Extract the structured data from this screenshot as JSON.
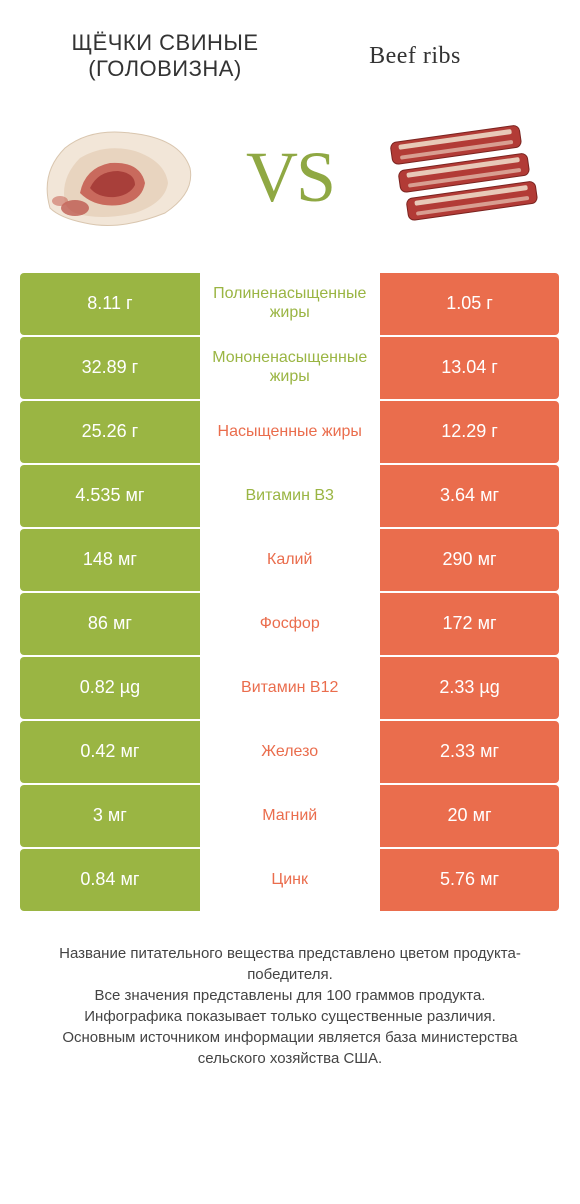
{
  "colors": {
    "green": "#9ab543",
    "orange": "#ea6d4d",
    "bg": "#ffffff",
    "text": "#333333"
  },
  "header": {
    "left_title": "ЩЁЧКИ СВИНЫЕ (ГОЛОВИЗНА)",
    "right_title": "Beef ribs",
    "vs": "VS"
  },
  "rows": [
    {
      "left": "8.11 г",
      "label": "Полиненасыщенные жиры",
      "right": "1.05 г",
      "winner": "left"
    },
    {
      "left": "32.89 г",
      "label": "Мононенасыщенные жиры",
      "right": "13.04 г",
      "winner": "left"
    },
    {
      "left": "25.26 г",
      "label": "Насыщенные жиры",
      "right": "12.29 г",
      "winner": "right"
    },
    {
      "left": "4.535 мг",
      "label": "Витамин B3",
      "right": "3.64 мг",
      "winner": "left"
    },
    {
      "left": "148 мг",
      "label": "Калий",
      "right": "290 мг",
      "winner": "right"
    },
    {
      "left": "86 мг",
      "label": "Фосфор",
      "right": "172 мг",
      "winner": "right"
    },
    {
      "left": "0.82 µg",
      "label": "Витамин B12",
      "right": "2.33 µg",
      "winner": "right"
    },
    {
      "left": "0.42 мг",
      "label": "Железо",
      "right": "2.33 мг",
      "winner": "right"
    },
    {
      "left": "3 мг",
      "label": "Магний",
      "right": "20 мг",
      "winner": "right"
    },
    {
      "left": "0.84 мг",
      "label": "Цинк",
      "right": "5.76 мг",
      "winner": "right"
    }
  ],
  "footer": {
    "line1": "Название питательного вещества представлено цветом продукта-победителя.",
    "line2": "Все значения представлены для 100 граммов продукта.",
    "line3": "Инфографика показывает только существенные различия.",
    "line4": "Основным источником информации является база министерства сельского хозяйства США."
  }
}
